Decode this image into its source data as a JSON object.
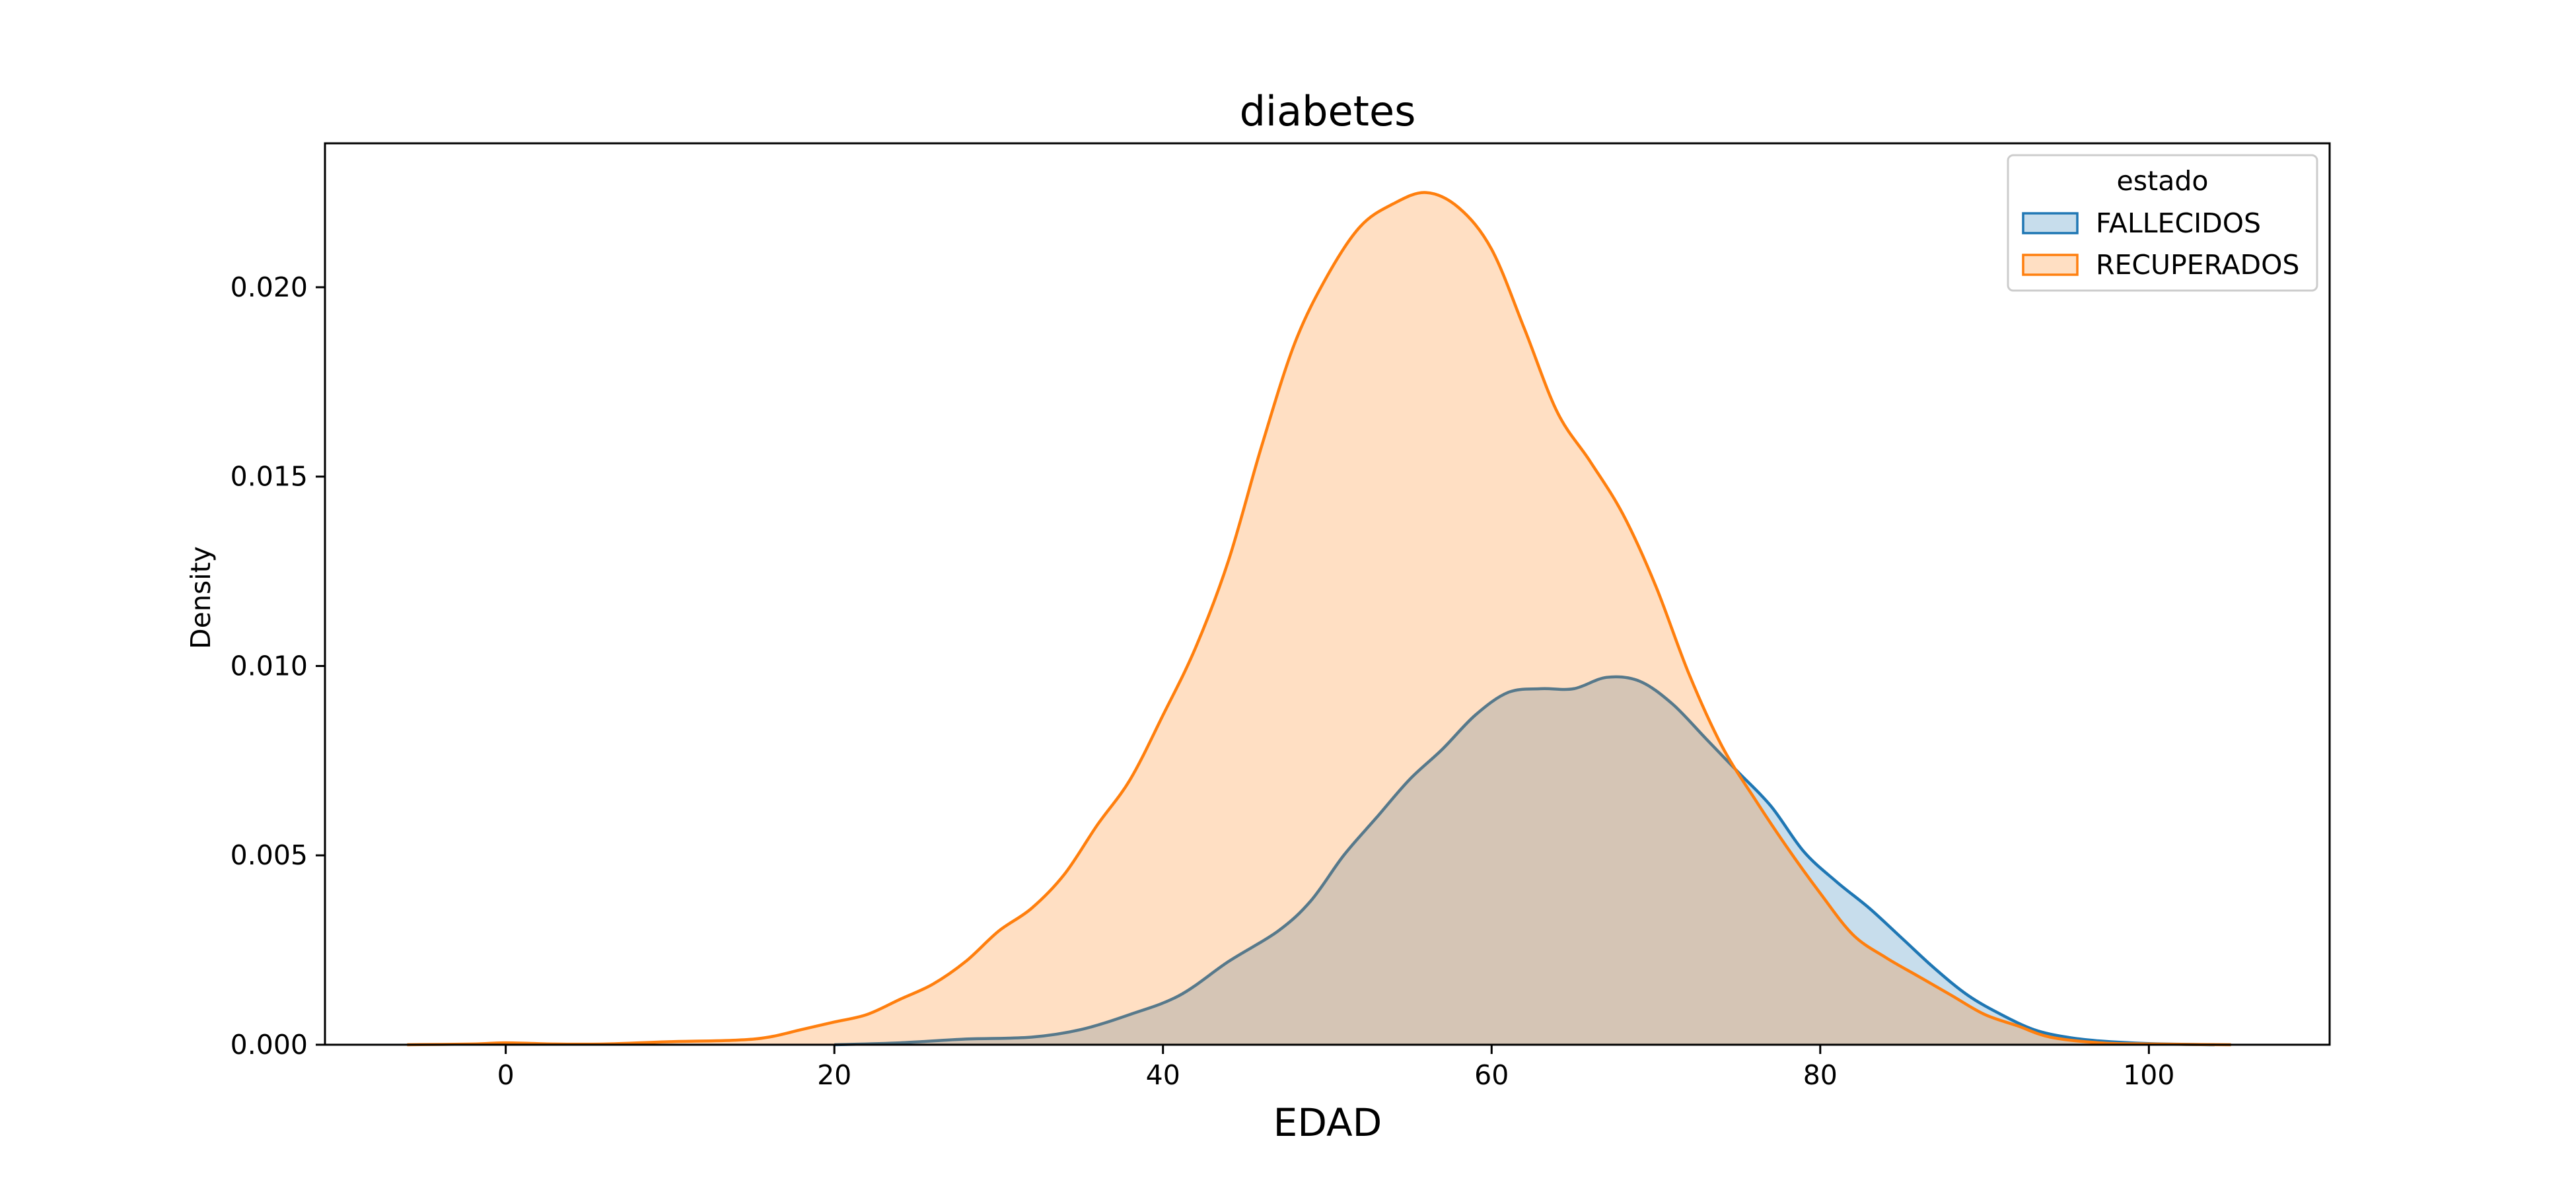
{
  "chart_data": {
    "type": "area",
    "title": "diabetes",
    "xlabel": "EDAD",
    "ylabel": "Density",
    "xlim": [
      -11,
      111
    ],
    "ylim": [
      0,
      0.0238
    ],
    "x_ticks": [
      0,
      20,
      40,
      60,
      80,
      100
    ],
    "x_tick_labels": [
      "0",
      "20",
      "40",
      "60",
      "80",
      "100"
    ],
    "y_ticks": [
      0,
      0.005,
      0.01,
      0.015,
      0.02
    ],
    "y_tick_labels": [
      "0.000",
      "0.005",
      "0.010",
      "0.015",
      "0.020"
    ],
    "grid": false,
    "legend": {
      "title": "estado",
      "position": "top-right"
    },
    "series": [
      {
        "name": "FALLECIDOS",
        "color": "#1f77b4",
        "fill": "#1f77b4",
        "fill_opacity": 0.25,
        "points": [
          [
            20,
            0.0
          ],
          [
            24,
            5e-05
          ],
          [
            28,
            0.00015
          ],
          [
            32,
            0.0002
          ],
          [
            35,
            0.0004
          ],
          [
            38,
            0.0008
          ],
          [
            41,
            0.0013
          ],
          [
            44,
            0.0022
          ],
          [
            47,
            0.003
          ],
          [
            49,
            0.0038
          ],
          [
            51,
            0.005
          ],
          [
            53,
            0.006
          ],
          [
            55,
            0.007
          ],
          [
            57,
            0.0078
          ],
          [
            59,
            0.0087
          ],
          [
            61,
            0.0093
          ],
          [
            63,
            0.0094
          ],
          [
            65,
            0.0094
          ],
          [
            67,
            0.0097
          ],
          [
            69,
            0.0096
          ],
          [
            71,
            0.009
          ],
          [
            73,
            0.0081
          ],
          [
            75,
            0.0072
          ],
          [
            77,
            0.0063
          ],
          [
            79,
            0.0051
          ],
          [
            81,
            0.0043
          ],
          [
            83,
            0.0036
          ],
          [
            85,
            0.0028
          ],
          [
            87,
            0.002
          ],
          [
            89,
            0.0013
          ],
          [
            91,
            0.0008
          ],
          [
            93,
            0.0004
          ],
          [
            95,
            0.0002
          ],
          [
            97,
            0.0001
          ],
          [
            100,
            3e-05
          ],
          [
            104,
            0.0
          ]
        ]
      },
      {
        "name": "RECUPERADOS",
        "color": "#ff7f0e",
        "fill": "#ff7f0e",
        "fill_opacity": 0.25,
        "points": [
          [
            -6,
            0.0
          ],
          [
            -2,
            2e-05
          ],
          [
            0,
            5e-05
          ],
          [
            3,
            2e-05
          ],
          [
            6,
            2e-05
          ],
          [
            10,
            8e-05
          ],
          [
            14,
            0.00012
          ],
          [
            16,
            0.0002
          ],
          [
            18,
            0.0004
          ],
          [
            20,
            0.0006
          ],
          [
            22,
            0.0008
          ],
          [
            24,
            0.0012
          ],
          [
            26,
            0.0016
          ],
          [
            28,
            0.0022
          ],
          [
            30,
            0.003
          ],
          [
            32,
            0.0036
          ],
          [
            34,
            0.0045
          ],
          [
            36,
            0.0058
          ],
          [
            38,
            0.007
          ],
          [
            40,
            0.0087
          ],
          [
            42,
            0.0105
          ],
          [
            44,
            0.0128
          ],
          [
            46,
            0.0158
          ],
          [
            48,
            0.0185
          ],
          [
            50,
            0.0203
          ],
          [
            52,
            0.0216
          ],
          [
            54,
            0.0222
          ],
          [
            56,
            0.0225
          ],
          [
            58,
            0.0221
          ],
          [
            60,
            0.021
          ],
          [
            62,
            0.0189
          ],
          [
            64,
            0.0167
          ],
          [
            66,
            0.0154
          ],
          [
            68,
            0.014
          ],
          [
            70,
            0.0121
          ],
          [
            72,
            0.0098
          ],
          [
            74,
            0.0079
          ],
          [
            76,
            0.0065
          ],
          [
            78,
            0.0052
          ],
          [
            80,
            0.004
          ],
          [
            82,
            0.0029
          ],
          [
            84,
            0.0023
          ],
          [
            86,
            0.0018
          ],
          [
            88,
            0.0013
          ],
          [
            90,
            0.0008
          ],
          [
            92,
            0.0005
          ],
          [
            94,
            0.0002
          ],
          [
            97,
            5e-05
          ],
          [
            100,
            2e-05
          ],
          [
            105,
            0.0
          ]
        ]
      }
    ]
  }
}
